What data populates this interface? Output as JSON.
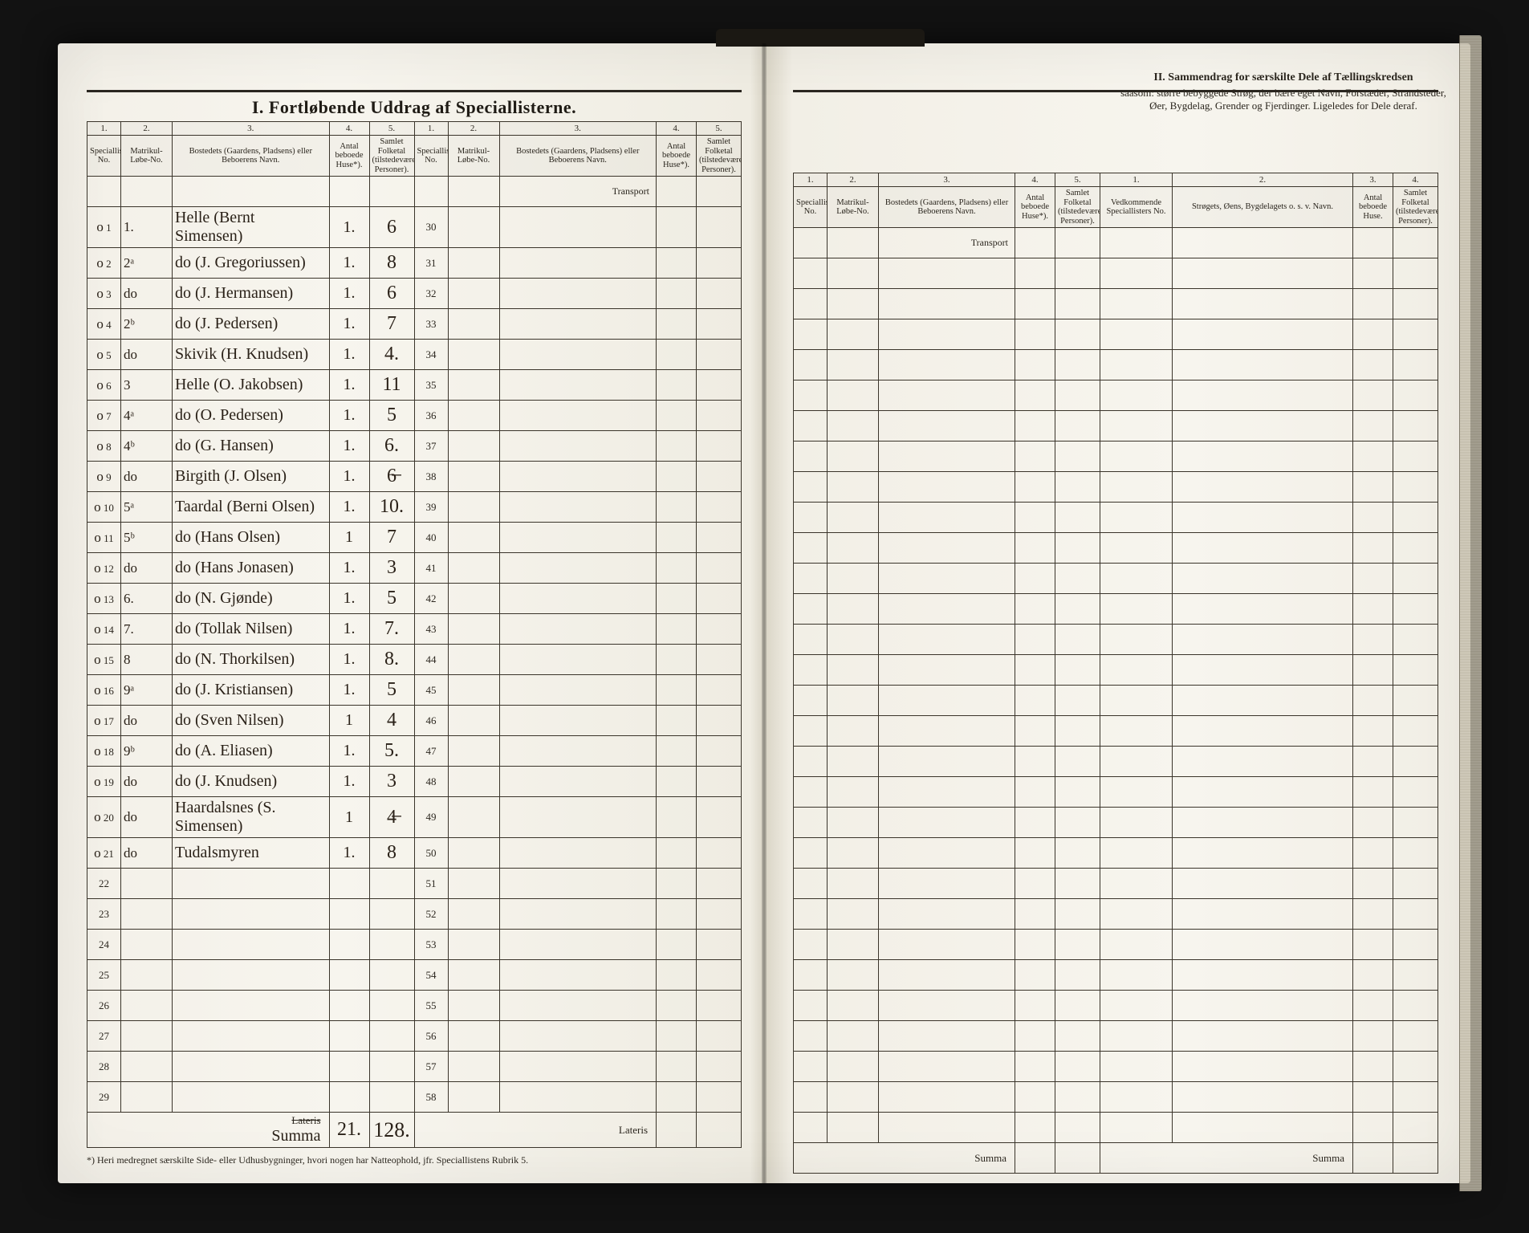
{
  "title_left": "I.  Fortløbende Uddrag af Speciallisterne.",
  "title_right_1": "II.  Sammendrag for særskilte Dele af Tællingskredsen",
  "title_right_2": "saasom: større bebyggede Strøg, der bære eget Navn, Forstæder, Strandsteder, Øer, Bygdelag, Grender og Fjerdinger. Ligeledes for Dele deraf.",
  "head": {
    "c1": "1.",
    "c2": "2.",
    "c3": "3.",
    "c4": "4.",
    "c5": "5.",
    "h1": "Speciallisternes No.",
    "h2": "Matrikul-Løbe-No.",
    "h3": "Bostedets (Gaardens, Pladsens) eller Beboerens Navn.",
    "h4": "Antal beboede Huse*).",
    "h5": "Samlet Folketal (tilstedeværende Personer).",
    "r1": "Vedkommende Speciallisters No.",
    "r2": "Strøgets, Øens, Bygdelagets o. s. v. Navn.",
    "r3": "Antal beboede Huse.",
    "r4": "Samlet Folketal (tilstedeværende Personer)."
  },
  "transport": "Transport",
  "lateris": "Lateris",
  "summa": "Summa",
  "totals_label": "Summa",
  "totals_huse": "21.",
  "totals_folk": "128.",
  "footnote": "*) Heri medregnet særskilte Side- eller Udhusbygninger, hvori nogen har Natteophold, jfr. Speciallistens Rubrik 5.",
  "rows": [
    {
      "n": "1",
      "lobe": "1.",
      "name": "Helle   (Bernt Simensen)",
      "huse": "1.",
      "folk": "6"
    },
    {
      "n": "2",
      "lobe": "2ᵃ",
      "name": "do    (J. Gregoriussen)",
      "huse": "1.",
      "folk": "8"
    },
    {
      "n": "3",
      "lobe": "do",
      "name": "do    (J. Hermansen)",
      "huse": "1.",
      "folk": "6"
    },
    {
      "n": "4",
      "lobe": "2ᵇ",
      "name": "do    (J. Pedersen)",
      "huse": "1.",
      "folk": "7"
    },
    {
      "n": "5",
      "lobe": "do",
      "name": "Skivik   (H. Knudsen)",
      "huse": "1.",
      "folk": "4."
    },
    {
      "n": "6",
      "lobe": "3",
      "name": "Helle   (O. Jakobsen)",
      "huse": "1.",
      "folk": "11"
    },
    {
      "n": "7",
      "lobe": "4ᵃ",
      "name": "do    (O. Pedersen)",
      "huse": "1.",
      "folk": "5"
    },
    {
      "n": "8",
      "lobe": "4ᵇ",
      "name": "do    (G. Hansen)",
      "huse": "1.",
      "folk": "6."
    },
    {
      "n": "9",
      "lobe": "do",
      "name": "Birgith   (J. Olsen)",
      "huse": "1.",
      "folk": "6̶"
    },
    {
      "n": "10",
      "lobe": "5ᵃ",
      "name": "Taardal   (Berni Olsen)",
      "huse": "1.",
      "folk": "10."
    },
    {
      "n": "11",
      "lobe": "5ᵇ",
      "name": "do    (Hans Olsen)",
      "huse": "1",
      "folk": "7"
    },
    {
      "n": "12",
      "lobe": "do",
      "name": "do    (Hans Jonasen)",
      "huse": "1.",
      "folk": "3"
    },
    {
      "n": "13",
      "lobe": "6.",
      "name": "do    (N. Gjønde)",
      "huse": "1.",
      "folk": "5"
    },
    {
      "n": "14",
      "lobe": "7.",
      "name": "do    (Tollak Nilsen)",
      "huse": "1.",
      "folk": "7."
    },
    {
      "n": "15",
      "lobe": "8",
      "name": "do    (N. Thorkilsen)",
      "huse": "1.",
      "folk": "8."
    },
    {
      "n": "16",
      "lobe": "9ᵃ",
      "name": "do    (J. Kristiansen)",
      "huse": "1.",
      "folk": "5"
    },
    {
      "n": "17",
      "lobe": "do",
      "name": "do    (Sven Nilsen)",
      "huse": "1",
      "folk": "4"
    },
    {
      "n": "18",
      "lobe": "9ᵇ",
      "name": "do    (A. Eliasen)",
      "huse": "1.",
      "folk": "5."
    },
    {
      "n": "19",
      "lobe": "do",
      "name": "do    (J. Knudsen)",
      "huse": "1.",
      "folk": "3"
    },
    {
      "n": "20",
      "lobe": "do",
      "name": "Haardalsnes   (S. Simensen)",
      "huse": "1",
      "folk": "4̶"
    },
    {
      "n": "21",
      "lobe": "do",
      "name": "Tudalsmyren",
      "huse": "1.",
      "folk": "8"
    }
  ],
  "blank_rows_left": [
    "22",
    "23",
    "24",
    "25",
    "26",
    "27",
    "28",
    "29"
  ],
  "right_nums": [
    "30",
    "31",
    "32",
    "33",
    "34",
    "35",
    "36",
    "37",
    "38",
    "39",
    "40",
    "41",
    "42",
    "43",
    "44",
    "45",
    "46",
    "47",
    "48",
    "49",
    "50",
    "51",
    "52",
    "53",
    "54",
    "55",
    "56",
    "57",
    "58"
  ],
  "colors": {
    "paper": "#f5f2e9",
    "ink": "#2a251d",
    "rule": "#3a342a",
    "bg": "#0a0a0a"
  }
}
